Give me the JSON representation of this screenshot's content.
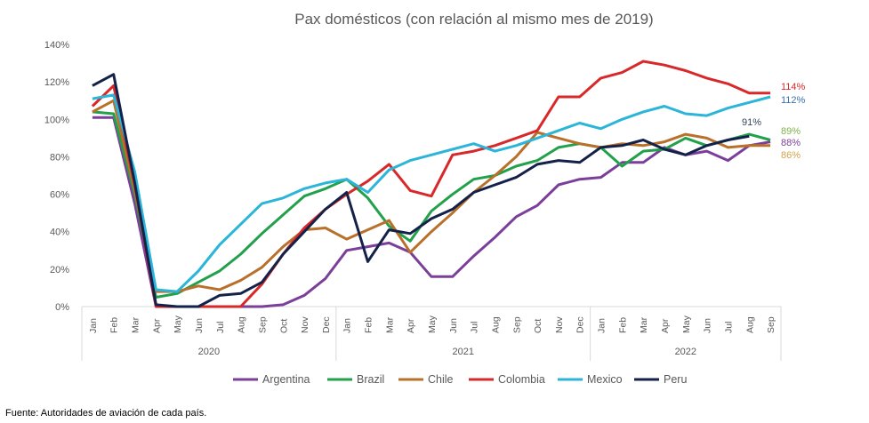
{
  "chart_data": {
    "type": "line",
    "title": "Pax domésticos (con relación al mismo mes de 2019)",
    "xlabel": "",
    "ylabel": "",
    "ylim": [
      0,
      140
    ],
    "y_ticks": [
      "0%",
      "20%",
      "40%",
      "60%",
      "80%",
      "100%",
      "120%",
      "140%"
    ],
    "y_tick_values": [
      0,
      20,
      40,
      60,
      80,
      100,
      120,
      140
    ],
    "categories": [
      "Jan",
      "Feb",
      "Mar",
      "Apr",
      "May",
      "Jun",
      "Jul",
      "Aug",
      "Sep",
      "Oct",
      "Nov",
      "Dec",
      "Jan",
      "Feb",
      "Mar",
      "Apr",
      "May",
      "Jun",
      "Jul",
      "Aug",
      "Sep",
      "Oct",
      "Nov",
      "Dec",
      "Jan",
      "Feb",
      "Mar",
      "Apr",
      "May",
      "Jun",
      "Jul",
      "Aug",
      "Sep"
    ],
    "years": [
      "2020",
      "2021",
      "2022"
    ],
    "grid": false,
    "legend_position": "bottom",
    "series": [
      {
        "name": "Argentina",
        "color": "#7b3f9a",
        "end_label": "88%",
        "values": [
          101,
          101,
          55,
          0,
          0,
          0,
          0,
          0,
          0,
          1,
          6,
          15,
          30,
          32,
          34,
          29,
          16,
          16,
          27,
          37,
          48,
          54,
          65,
          68,
          69,
          77,
          77,
          85,
          81,
          83,
          78,
          86,
          88
        ]
      },
      {
        "name": "Brazil",
        "color": "#22a04b",
        "end_label": "89%",
        "label_color": "#7fb24a",
        "values": [
          104,
          103,
          60,
          5,
          7,
          13,
          19,
          28,
          39,
          49,
          59,
          63,
          68,
          58,
          43,
          35,
          51,
          60,
          68,
          70,
          75,
          78,
          85,
          87,
          85,
          75,
          83,
          84,
          90,
          86,
          89,
          92,
          89
        ]
      },
      {
        "name": "Chile",
        "color": "#b8702a",
        "end_label": "86%",
        "label_color": "#d4a04a",
        "values": [
          104,
          110,
          62,
          8,
          8,
          11,
          9,
          14,
          21,
          32,
          41,
          42,
          36,
          41,
          46,
          29,
          40,
          50,
          61,
          70,
          80,
          93,
          90,
          87,
          85,
          87,
          86,
          88,
          92,
          90,
          85,
          86,
          86
        ]
      },
      {
        "name": "Colombia",
        "color": "#d8282a",
        "end_label": "114%",
        "values": [
          107,
          118,
          65,
          0,
          0,
          0,
          0,
          0,
          12,
          28,
          42,
          52,
          60,
          67,
          76,
          62,
          59,
          81,
          83,
          86,
          90,
          94,
          112,
          112,
          122,
          125,
          131,
          129,
          126,
          122,
          119,
          114,
          114
        ]
      },
      {
        "name": "Mexico",
        "color": "#2bb5d8",
        "end_label": "112%",
        "label_color": "#3a6fa8",
        "values": [
          111,
          113,
          72,
          9,
          8,
          19,
          33,
          44,
          55,
          58,
          63,
          66,
          68,
          61,
          73,
          78,
          81,
          84,
          87,
          83,
          86,
          90,
          94,
          98,
          95,
          100,
          104,
          107,
          103,
          102,
          106,
          109,
          112
        ]
      },
      {
        "name": "Peru",
        "color": "#14224a",
        "end_label": "91%",
        "label_color": "#34445a",
        "values": [
          118,
          124,
          66,
          1,
          0,
          0,
          6,
          7,
          13,
          28,
          40,
          52,
          61,
          24,
          41,
          39,
          47,
          52,
          61,
          65,
          69,
          76,
          78,
          77,
          85,
          86,
          89,
          84,
          81,
          86,
          89,
          91,
          null
        ]
      }
    ]
  },
  "footer": "Fuente: Autoridades de aviación de cada país."
}
